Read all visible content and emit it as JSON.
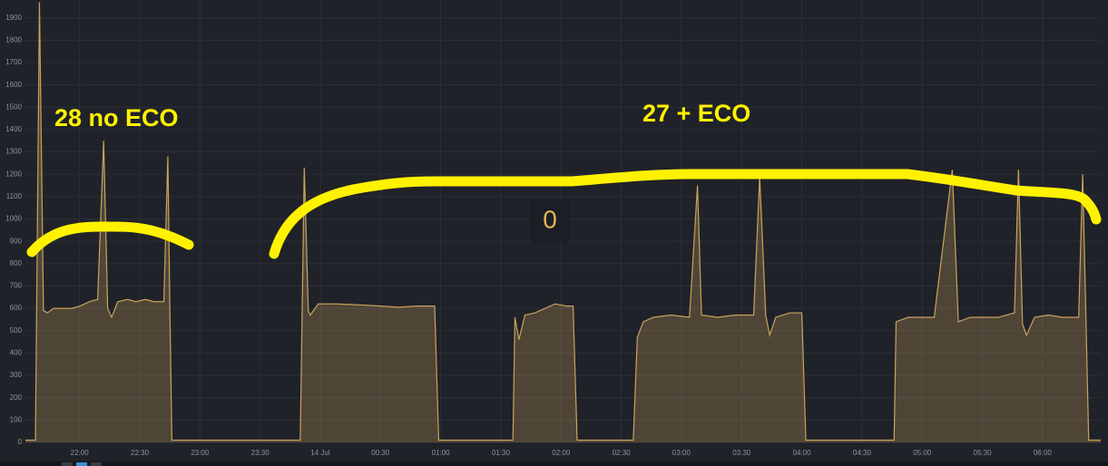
{
  "chart_data": {
    "type": "area",
    "annotations": [
      "28 no ECO",
      "27 + ECO",
      "0"
    ],
    "x": [
      1293,
      1298,
      1300,
      1302,
      1304,
      1307,
      1316,
      1320,
      1325,
      1329,
      1332,
      1334,
      1336,
      1339,
      1344,
      1348,
      1353,
      1357,
      1362,
      1364,
      1365,
      1366,
      1430,
      1432,
      1434,
      1435,
      1439,
      1448,
      1461,
      1470,
      1479,
      1488,
      1497,
      1499,
      1536,
      1537,
      1539,
      1542,
      1547,
      1552,
      1557,
      1563,
      1566,
      1568,
      1596,
      1598,
      1601,
      1606,
      1615,
      1624,
      1628,
      1630,
      1638,
      1647,
      1656,
      1659,
      1662,
      1664,
      1667,
      1674,
      1680,
      1682,
      1726,
      1727,
      1733,
      1746,
      1755,
      1758,
      1764,
      1778,
      1786,
      1788,
      1790,
      1792,
      1796,
      1803,
      1810,
      1818,
      1820,
      1823,
      1829
    ],
    "series": [
      {
        "color": "#c9a35c",
        "values": [
          10,
          10,
          1970,
          590,
          580,
          600,
          600,
          610,
          630,
          640,
          1350,
          600,
          560,
          630,
          640,
          630,
          640,
          630,
          630,
          1280,
          600,
          10,
          10,
          1230,
          590,
          570,
          620,
          620,
          615,
          610,
          605,
          610,
          610,
          10,
          10,
          560,
          460,
          570,
          580,
          600,
          620,
          610,
          610,
          10,
          10,
          470,
          540,
          560,
          570,
          560,
          1150,
          570,
          560,
          570,
          570,
          1190,
          570,
          480,
          560,
          580,
          580,
          10,
          10,
          540,
          560,
          560,
          1220,
          540,
          560,
          560,
          580,
          1220,
          530,
          480,
          560,
          570,
          560,
          560,
          1200,
          10,
          10
        ]
      }
    ],
    "xlim": [
      1293,
      1829
    ],
    "xticks": [
      {
        "value": 1320,
        "label": "22:00"
      },
      {
        "value": 1350,
        "label": "22:30"
      },
      {
        "value": 1380,
        "label": "23:00"
      },
      {
        "value": 1410,
        "label": "23:30"
      },
      {
        "value": 1440,
        "label": "14 Jul"
      },
      {
        "value": 1470,
        "label": "00:30"
      },
      {
        "value": 1500,
        "label": "01:00"
      },
      {
        "value": 1530,
        "label": "01:30"
      },
      {
        "value": 1560,
        "label": "02:00"
      },
      {
        "value": 1590,
        "label": "02:30"
      },
      {
        "value": 1620,
        "label": "03:00"
      },
      {
        "value": 1650,
        "label": "03:30"
      },
      {
        "value": 1680,
        "label": "04:00"
      },
      {
        "value": 1710,
        "label": "04:30"
      },
      {
        "value": 1740,
        "label": "05:00"
      },
      {
        "value": 1770,
        "label": "05:30"
      },
      {
        "value": 1800,
        "label": "06:00"
      }
    ],
    "ylim": [
      0,
      1980
    ],
    "yticks": [
      0,
      100,
      200,
      300,
      400,
      500,
      600,
      700,
      800,
      900,
      1000,
      1100,
      1200,
      1300,
      1400,
      1500,
      1600,
      1700,
      1800,
      1900
    ],
    "grid": true
  }
}
